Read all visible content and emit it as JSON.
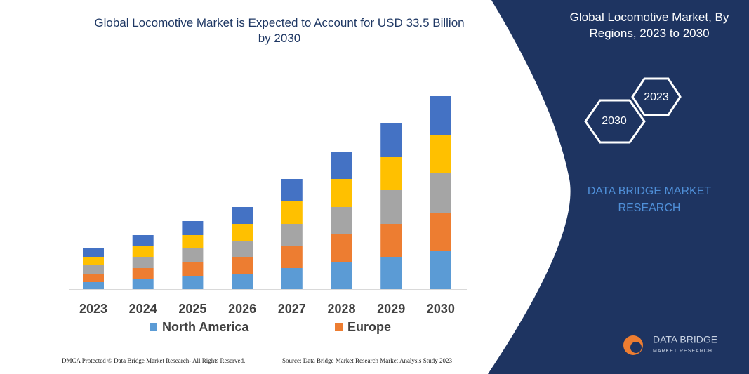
{
  "chart_data": {
    "type": "stacked-bar",
    "title": "Global Locomotive Market is Expected to Account for USD 33.5 Billion by 2030",
    "categories": [
      "2023",
      "2024",
      "2025",
      "2026",
      "2027",
      "2028",
      "2029",
      "2030"
    ],
    "series": [
      {
        "name": "North America",
        "color": "#5b9bd5",
        "values": [
          10,
          14,
          18,
          22,
          30,
          38,
          46,
          54
        ]
      },
      {
        "name": "Europe",
        "color": "#ed7d31",
        "values": [
          12,
          16,
          20,
          24,
          32,
          40,
          47,
          55
        ]
      },
      {
        "color": "#a5a5a5",
        "values": [
          12,
          16,
          20,
          23,
          31,
          39,
          48,
          56
        ]
      },
      {
        "color": "#ffc000",
        "values": [
          12,
          16,
          19,
          24,
          32,
          40,
          47,
          55
        ]
      },
      {
        "color": "#4472c4",
        "values": [
          13,
          15,
          20,
          24,
          32,
          39,
          48,
          55
        ]
      }
    ]
  },
  "panel": {
    "title": "Global Locomotive Market, By Regions, 2023 to 2030",
    "hex_start": "2023",
    "hex_end": "2030",
    "brand": "DATA BRIDGE MARKET RESEARCH"
  },
  "logo": {
    "name": "DATA BRIDGE",
    "sub": "MARKET RESEARCH"
  },
  "footer": {
    "left": "DMCA Protected © Data Bridge Market Research- All Rights Reserved.",
    "right": "Source: Data Bridge Market Research Market Analysis Study 2023"
  }
}
